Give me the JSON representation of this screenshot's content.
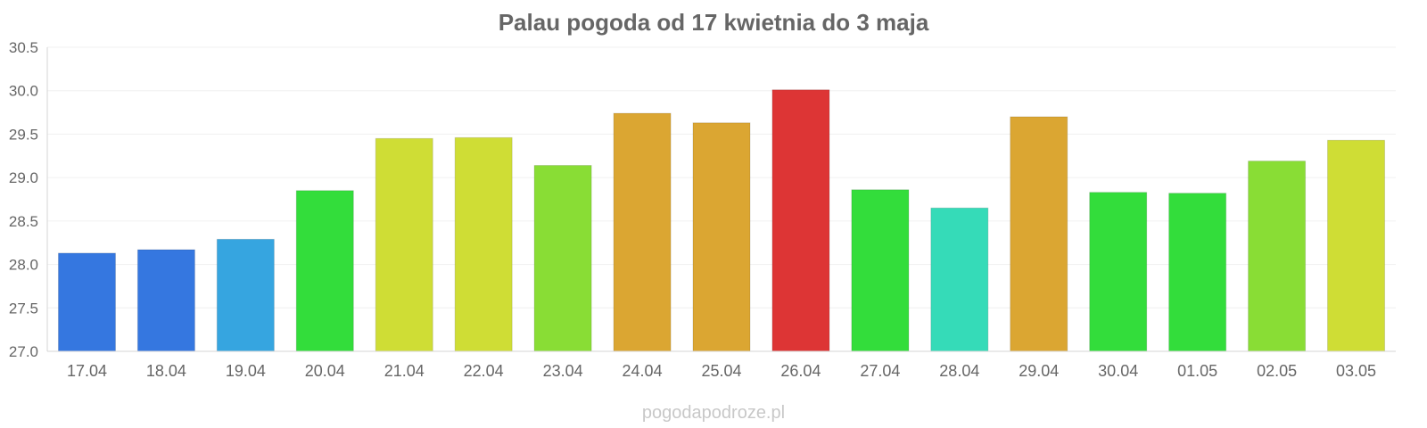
{
  "title": "Palau pogoda od 17 kwietnia do 3 maja",
  "watermark": "pogodapodroze.pl",
  "chart_data": {
    "type": "bar",
    "title": "Palau pogoda od 17 kwietnia do 3 maja",
    "xlabel": "",
    "ylabel": "",
    "ylim": [
      27.0,
      30.5
    ],
    "yticks": [
      "27.0",
      "27.5",
      "28.0",
      "28.5",
      "29.0",
      "29.5",
      "30.0",
      "30.5"
    ],
    "grid": true,
    "categories": [
      "17.04",
      "18.04",
      "19.04",
      "20.04",
      "21.04",
      "22.04",
      "23.04",
      "24.04",
      "25.04",
      "26.04",
      "27.04",
      "28.04",
      "29.04",
      "30.04",
      "01.05",
      "02.05",
      "03.05"
    ],
    "values": [
      28.13,
      28.17,
      28.29,
      28.85,
      29.45,
      29.46,
      29.14,
      29.74,
      29.63,
      30.01,
      28.86,
      28.65,
      29.7,
      28.83,
      28.82,
      29.19,
      29.43
    ],
    "colors": [
      "#3577e0",
      "#3577e0",
      "#36a5e0",
      "#33dd3b",
      "#cfdd35",
      "#cfdd35",
      "#89dd35",
      "#dba632",
      "#dba632",
      "#dd3535",
      "#33dd3b",
      "#35dbb8",
      "#dba632",
      "#33dd3b",
      "#33dd3b",
      "#89dd35",
      "#cfdd35"
    ]
  }
}
